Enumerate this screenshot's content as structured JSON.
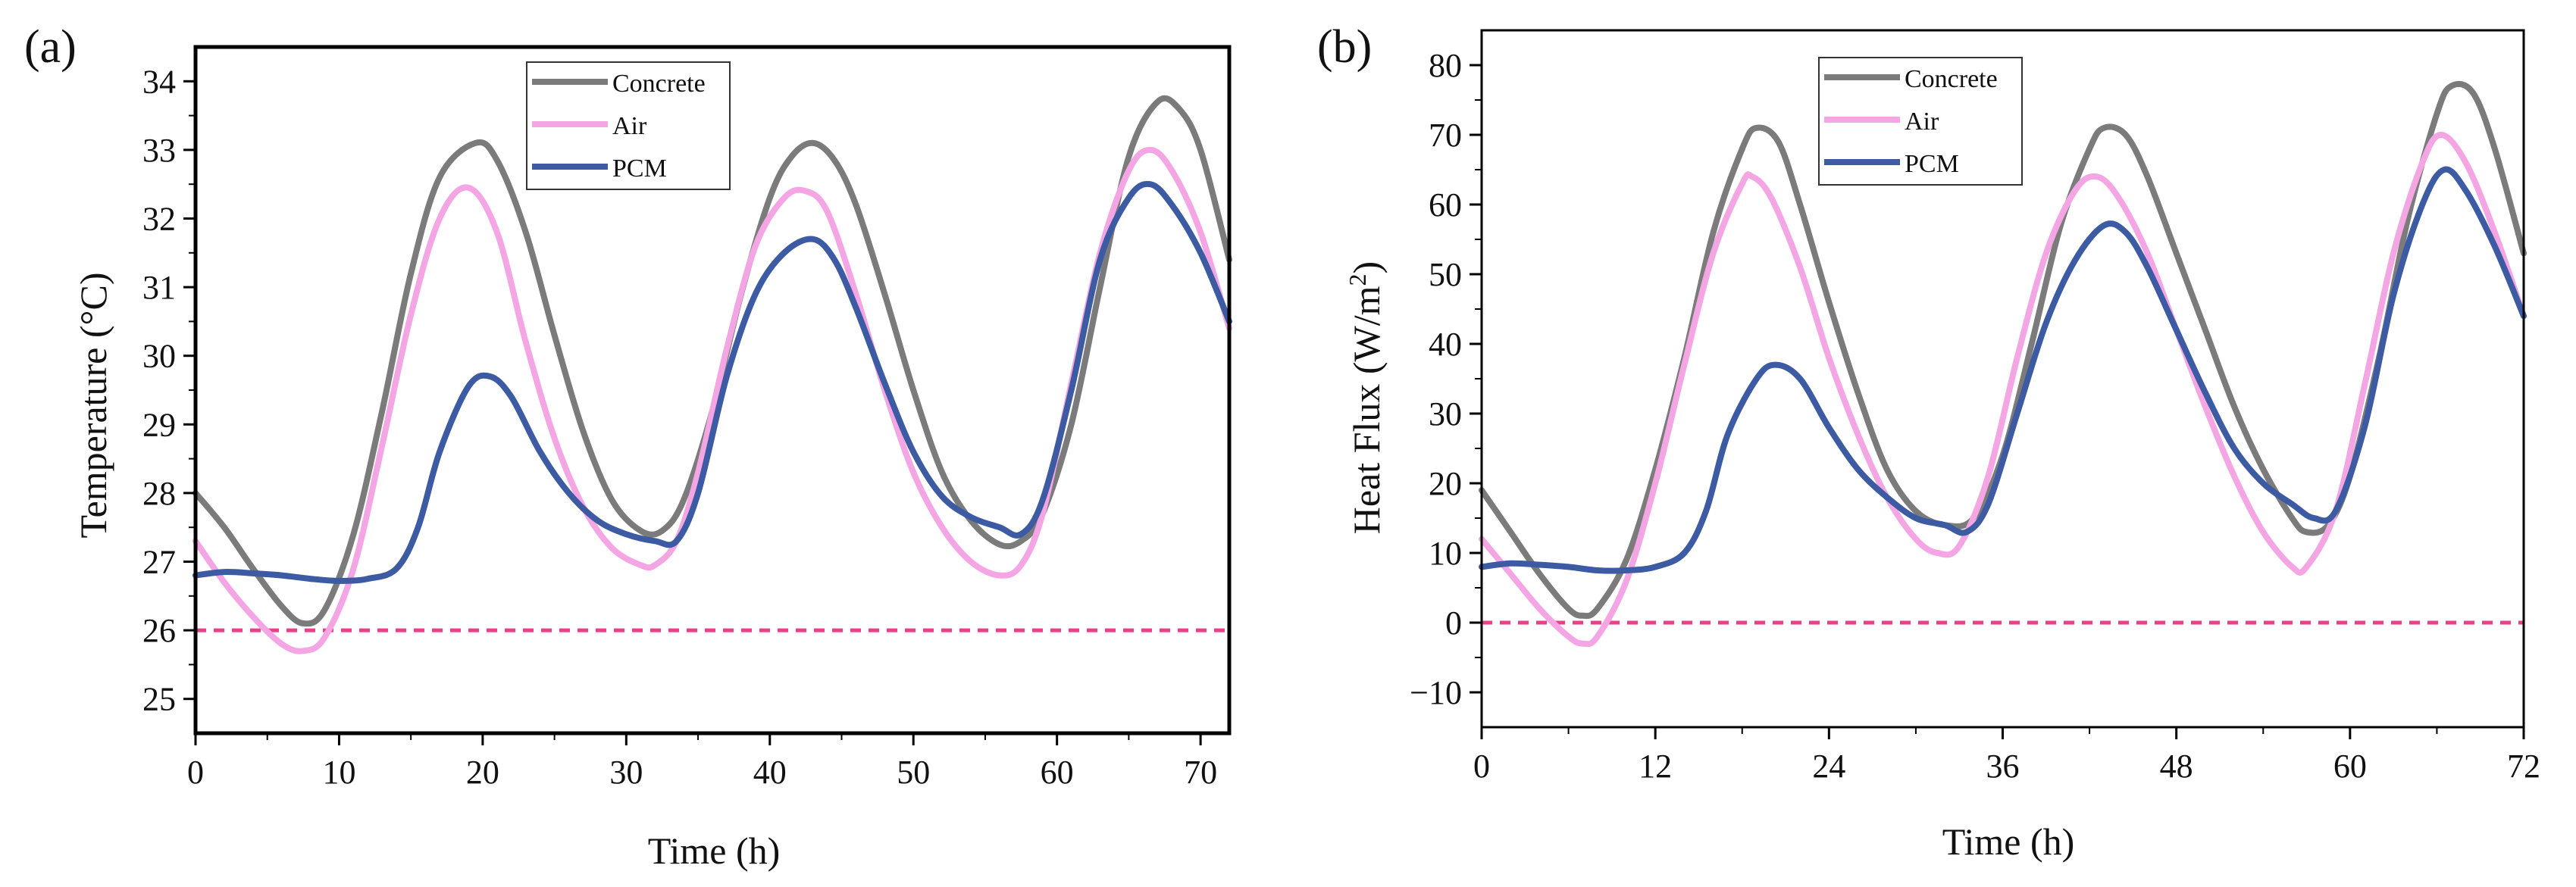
{
  "chart_data": [
    {
      "panel_label": "(a)",
      "type": "line",
      "xlabel": "Time (h)",
      "ylabel": "Temperature (°C)",
      "xlim": [
        0,
        72
      ],
      "ylim": [
        24.5,
        34.5
      ],
      "xticks": [
        0,
        10,
        20,
        30,
        40,
        50,
        60,
        70
      ],
      "yticks": [
        25,
        26,
        27,
        28,
        29,
        30,
        31,
        32,
        33,
        34
      ],
      "legend_position": "top-center",
      "reference_line": {
        "y": 26,
        "style": "dashed",
        "color": "#e8408a"
      },
      "series": [
        {
          "name": "Concrete",
          "color": "#7b7b7b",
          "x": [
            0,
            2,
            4,
            6,
            7.5,
            9,
            11,
            13,
            15,
            17,
            19.5,
            21,
            23,
            25,
            27,
            29,
            31,
            32.5,
            34,
            36,
            38,
            40,
            41.5,
            43,
            44.5,
            46,
            48,
            50,
            52,
            54,
            56,
            57.5,
            59,
            61,
            63,
            65,
            67,
            68.5,
            70,
            72
          ],
          "y": [
            28.0,
            27.5,
            26.9,
            26.35,
            26.1,
            26.3,
            27.4,
            29.2,
            31.2,
            32.6,
            33.1,
            32.85,
            31.8,
            30.3,
            28.9,
            27.9,
            27.45,
            27.45,
            27.9,
            29.2,
            30.9,
            32.3,
            32.9,
            33.1,
            32.85,
            32.2,
            30.9,
            29.5,
            28.3,
            27.6,
            27.25,
            27.3,
            27.7,
            29.0,
            31.0,
            32.9,
            33.7,
            33.6,
            33.0,
            31.4
          ]
        },
        {
          "name": "Air",
          "color": "#f4a6e4",
          "x": [
            0,
            2,
            4,
            6,
            7.5,
            9,
            11,
            13,
            15,
            17,
            19,
            21,
            23,
            25,
            27,
            29,
            31,
            32,
            33.5,
            35,
            37,
            39,
            41,
            42.5,
            44,
            46,
            48,
            50,
            52,
            54,
            56,
            57.5,
            59,
            61,
            63,
            65,
            66.5,
            68,
            70,
            72
          ],
          "y": [
            27.3,
            26.7,
            26.2,
            25.8,
            25.7,
            25.9,
            26.9,
            28.7,
            30.6,
            32.0,
            32.45,
            31.8,
            30.2,
            28.8,
            27.8,
            27.2,
            26.95,
            26.95,
            27.3,
            28.3,
            30.1,
            31.6,
            32.3,
            32.4,
            32.1,
            30.9,
            29.5,
            28.3,
            27.5,
            27.0,
            26.8,
            26.95,
            27.7,
            29.6,
            31.5,
            32.7,
            33.0,
            32.7,
            31.8,
            30.4
          ]
        },
        {
          "name": "PCM",
          "color": "#3d5ba3",
          "x": [
            0,
            2,
            4,
            6,
            8,
            10,
            12,
            14,
            15.5,
            17,
            19,
            20.5,
            22,
            24,
            26,
            28,
            30,
            32,
            33.5,
            35,
            37,
            39,
            41,
            43,
            44.5,
            46,
            48,
            50,
            52,
            54,
            56,
            57.5,
            59,
            61,
            63,
            65,
            66.5,
            68,
            70,
            72
          ],
          "y": [
            26.8,
            26.85,
            26.83,
            26.8,
            26.75,
            26.72,
            26.75,
            26.9,
            27.5,
            28.6,
            29.55,
            29.7,
            29.4,
            28.6,
            28.0,
            27.6,
            27.4,
            27.3,
            27.3,
            28.0,
            29.7,
            30.9,
            31.5,
            31.7,
            31.4,
            30.7,
            29.6,
            28.6,
            27.95,
            27.65,
            27.5,
            27.4,
            27.9,
            29.5,
            31.4,
            32.3,
            32.5,
            32.2,
            31.5,
            30.5
          ]
        }
      ]
    },
    {
      "panel_label": "(b)",
      "type": "line",
      "xlabel": "Time (h)",
      "ylabel": "Heat Flux (W/m²)",
      "ylabel_main": "Heat Flux (W/m",
      "ylabel_sup": "2",
      "ylabel_close": ")",
      "xlim": [
        0,
        72
      ],
      "ylim": [
        -15,
        85
      ],
      "xticks": [
        0,
        12,
        24,
        36,
        48,
        60,
        72
      ],
      "yticks": [
        -10,
        0,
        10,
        20,
        30,
        40,
        50,
        60,
        70,
        80
      ],
      "ytick_labels": [
        "−10",
        "0",
        "10",
        "20",
        "30",
        "40",
        "50",
        "60",
        "70",
        "80"
      ],
      "legend_position": "top-center",
      "reference_line": {
        "y": 0,
        "style": "dashed",
        "color": "#e8408a"
      },
      "series": [
        {
          "name": "Concrete",
          "color": "#7b7b7b",
          "x": [
            0,
            2,
            4,
            6,
            7,
            8,
            10,
            12,
            14,
            16,
            18,
            19,
            20.5,
            22,
            24,
            26,
            28,
            30,
            32,
            34,
            36,
            38,
            40,
            42,
            43,
            44.5,
            46,
            48,
            50,
            52,
            54,
            56,
            57,
            58.5,
            60,
            62,
            64,
            66,
            67,
            68.5,
            70,
            72
          ],
          "y": [
            19,
            13,
            7,
            2,
            1,
            2,
            9,
            22,
            38,
            56,
            68,
            71,
            69,
            60,
            46,
            33,
            22,
            16,
            14,
            15,
            24,
            40,
            57,
            68,
            71,
            70,
            64,
            53,
            42,
            31,
            22,
            15,
            13,
            14,
            21,
            38,
            58,
            73,
            77,
            76,
            68,
            53
          ]
        },
        {
          "name": "Air",
          "color": "#f4a6e4",
          "x": [
            0,
            2,
            4,
            6,
            7,
            8,
            10,
            12,
            14,
            16,
            18,
            18.7,
            20,
            22,
            24,
            26,
            28,
            30,
            31.5,
            33,
            35,
            37,
            39,
            41,
            42.5,
            44,
            46,
            48,
            50,
            52,
            54,
            56,
            57,
            59,
            61,
            63,
            65,
            66.3,
            68,
            70,
            72
          ],
          "y": [
            12,
            7,
            2,
            -2,
            -3,
            -2,
            6,
            20,
            37,
            53,
            63,
            64,
            61,
            51,
            38,
            27,
            18,
            12,
            10,
            11,
            21,
            38,
            53,
            62,
            64,
            61,
            53,
            42,
            31,
            21,
            13,
            8,
            8,
            16,
            34,
            53,
            66,
            70,
            66,
            56,
            44
          ]
        },
        {
          "name": "PCM",
          "color": "#3d5ba3",
          "x": [
            0,
            2,
            4,
            6,
            8,
            10,
            12,
            14,
            15.5,
            17,
            19,
            20.3,
            22,
            24,
            26,
            28,
            30,
            32,
            33.5,
            35,
            37,
            39,
            41,
            43,
            44.5,
            46,
            48,
            50,
            52,
            54,
            56,
            57.5,
            59,
            61,
            63,
            65,
            66.5,
            68,
            70,
            72
          ],
          "y": [
            8,
            8.5,
            8.3,
            8,
            7.5,
            7.5,
            8,
            10,
            16,
            27,
            35,
            37,
            35,
            28,
            22,
            18,
            15,
            14,
            13,
            17,
            30,
            43,
            52,
            57,
            56,
            51,
            42,
            33,
            25,
            20,
            17,
            15,
            16,
            28,
            47,
            60,
            65,
            62,
            54,
            44
          ]
        }
      ]
    }
  ]
}
